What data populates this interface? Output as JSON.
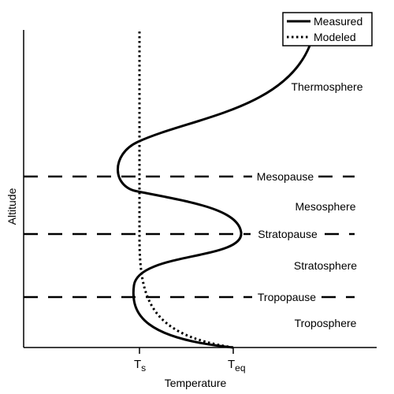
{
  "axes": {
    "xlabel": "Temperature",
    "ylabel": "Altitude",
    "ticks": [
      {
        "main": "T",
        "sub": "s"
      },
      {
        "main": "T",
        "sub": "eq"
      }
    ]
  },
  "legend": {
    "items": [
      {
        "label": "Measured",
        "style": "solid"
      },
      {
        "label": "Modeled",
        "style": "dotted"
      }
    ]
  },
  "boundaries": [
    {
      "label": "Mesopause"
    },
    {
      "label": "Stratopause"
    },
    {
      "label": "Tropopause"
    }
  ],
  "layers": [
    {
      "label": "Thermosphere"
    },
    {
      "label": "Mesosphere"
    },
    {
      "label": "Stratosphere"
    },
    {
      "label": "Troposphere"
    }
  ],
  "colors": {
    "line": "#000000",
    "background": "#ffffff"
  }
}
